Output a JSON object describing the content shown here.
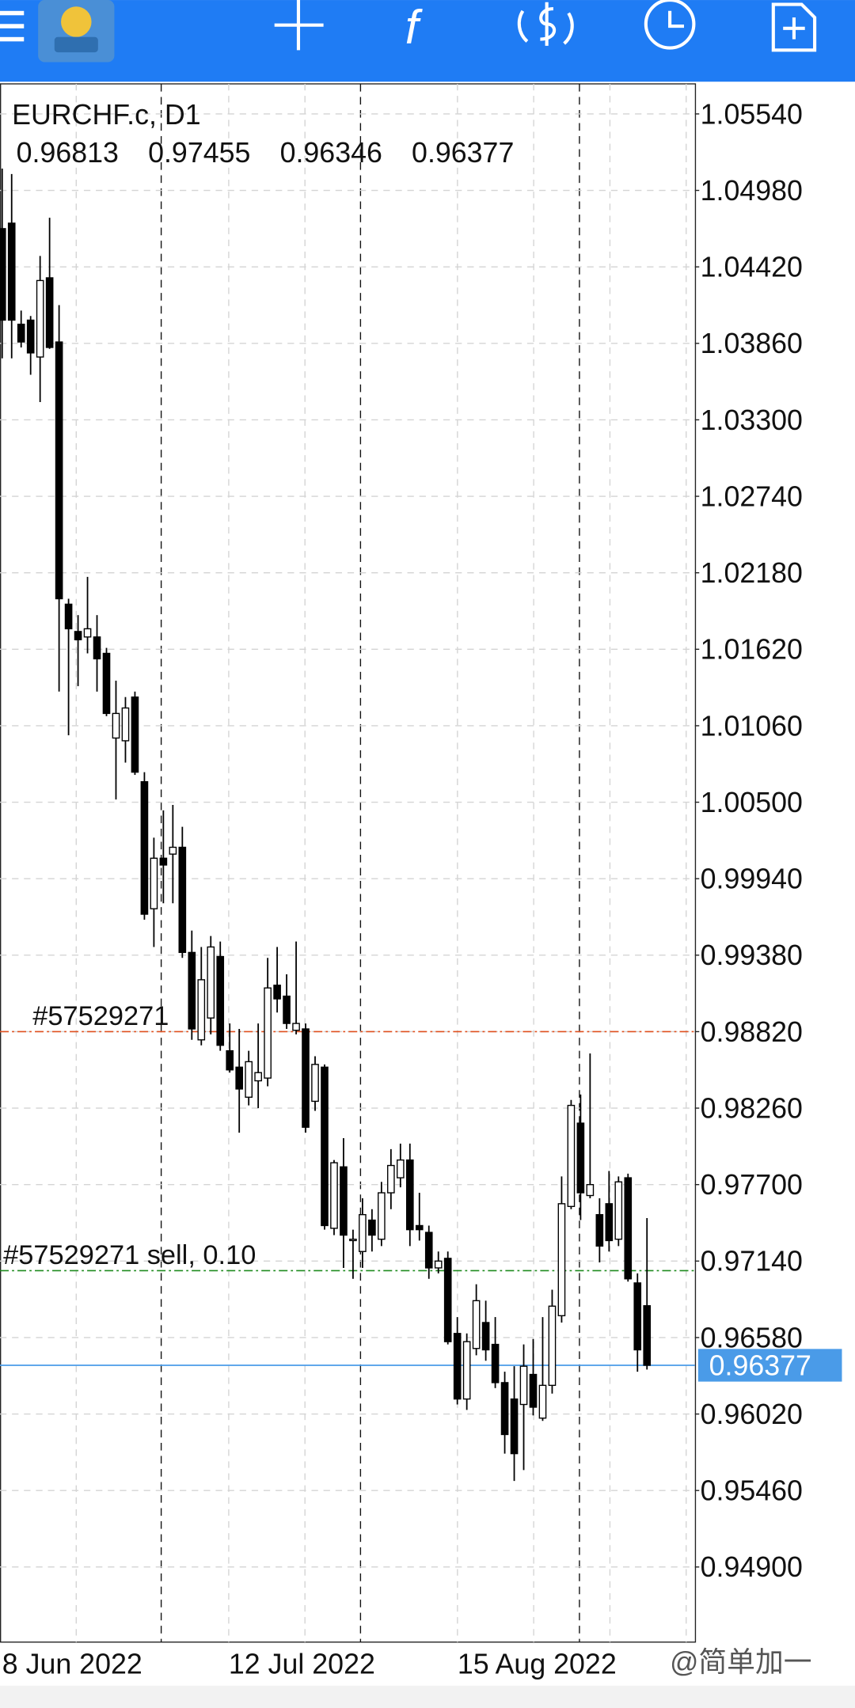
{
  "chart_data": {
    "type": "candlestick",
    "title": "EURCHF.c,  D1",
    "ohlc": [
      [
        1.047,
        1.0514,
        1.0375,
        1.0403
      ],
      [
        1.0474,
        1.051,
        1.0375,
        1.0403
      ],
      [
        1.04,
        1.041,
        1.0383,
        1.0387
      ],
      [
        1.0403,
        1.0406,
        1.0363,
        1.0379
      ],
      [
        1.0376,
        1.045,
        1.0343,
        1.0432
      ],
      [
        1.0434,
        1.0478,
        1.0382,
        1.0383
      ],
      [
        1.0387,
        1.0414,
        1.0131,
        1.0199
      ],
      [
        1.0195,
        1.0199,
        1.0099,
        1.0177
      ],
      [
        1.0175,
        1.0187,
        1.0135,
        1.0169
      ],
      [
        1.0171,
        1.0215,
        1.0159,
        1.0177
      ],
      [
        1.0171,
        1.0187,
        1.0131,
        1.0155
      ],
      [
        1.0159,
        1.0163,
        1.0113,
        1.0115
      ],
      [
        1.0097,
        1.0139,
        1.0052,
        1.0115
      ],
      [
        1.0095,
        1.0127,
        1.0079,
        1.0119
      ],
      [
        1.0127,
        1.0131,
        1.007,
        1.0072
      ],
      [
        1.0065,
        1.0072,
        0.9964,
        0.9968
      ],
      [
        0.9972,
        1.0024,
        0.9944,
        1.0009
      ],
      [
        1.0009,
        1.0044,
        0.9976,
        1.0004
      ],
      [
        1.0012,
        1.0048,
        0.9976,
        1.0017
      ],
      [
        1.0017,
        1.0032,
        0.9936,
        0.994
      ],
      [
        0.994,
        0.9956,
        0.9876,
        0.9884
      ],
      [
        0.9876,
        0.9944,
        0.9872,
        0.992
      ],
      [
        0.9892,
        0.9952,
        0.988,
        0.9944
      ],
      [
        0.9937,
        0.9948,
        0.9868,
        0.9872
      ],
      [
        0.9868,
        0.9888,
        0.9852,
        0.9854
      ],
      [
        0.9856,
        0.9884,
        0.9808,
        0.984
      ],
      [
        0.9834,
        0.9868,
        0.9828,
        0.986
      ],
      [
        0.9846,
        0.9888,
        0.9826,
        0.9852
      ],
      [
        0.9848,
        0.9936,
        0.9842,
        0.9914
      ],
      [
        0.9916,
        0.9944,
        0.9896,
        0.9906
      ],
      [
        0.9908,
        0.9924,
        0.9884,
        0.9888
      ],
      [
        0.9883,
        0.9948,
        0.988,
        0.9888
      ],
      [
        0.9884,
        0.9888,
        0.9808,
        0.9812
      ],
      [
        0.9831,
        0.9864,
        0.9824,
        0.9858
      ],
      [
        0.9856,
        0.9858,
        0.9737,
        0.974
      ],
      [
        0.9738,
        0.9788,
        0.9733,
        0.9786
      ],
      [
        0.9783,
        0.9804,
        0.9709,
        0.9733
      ],
      [
        0.9729,
        0.9737,
        0.9701,
        0.973
      ],
      [
        0.9721,
        0.976,
        0.9709,
        0.9748
      ],
      [
        0.9744,
        0.9752,
        0.9721,
        0.9733
      ],
      [
        0.973,
        0.9772,
        0.9725,
        0.9764
      ],
      [
        0.9764,
        0.9796,
        0.9752,
        0.9784
      ],
      [
        0.9775,
        0.98,
        0.9768,
        0.9788
      ],
      [
        0.9788,
        0.98,
        0.9725,
        0.9737
      ],
      [
        0.974,
        0.9764,
        0.9729,
        0.9737
      ],
      [
        0.9735,
        0.974,
        0.9701,
        0.9709
      ],
      [
        0.9709,
        0.9721,
        0.9705,
        0.9714
      ],
      [
        0.9716,
        0.9721,
        0.9653,
        0.9655
      ],
      [
        0.9661,
        0.9673,
        0.9609,
        0.9613
      ],
      [
        0.9613,
        0.9661,
        0.9605,
        0.9655
      ],
      [
        0.965,
        0.9697,
        0.9645,
        0.9685
      ],
      [
        0.9669,
        0.9685,
        0.9641,
        0.9649
      ],
      [
        0.9653,
        0.9673,
        0.9621,
        0.9625
      ],
      [
        0.9625,
        0.9633,
        0.9573,
        0.9587
      ],
      [
        0.9613,
        0.9637,
        0.9553,
        0.9573
      ],
      [
        0.9609,
        0.9653,
        0.9561,
        0.9637
      ],
      [
        0.9631,
        0.9657,
        0.9601,
        0.9607
      ],
      [
        0.9599,
        0.9673,
        0.9597,
        0.9623
      ],
      [
        0.9623,
        0.9693,
        0.9617,
        0.9681
      ],
      [
        0.9674,
        0.9776,
        0.9669,
        0.9756
      ],
      [
        0.9754,
        0.9832,
        0.9752,
        0.9828
      ],
      [
        0.9815,
        0.9836,
        0.9744,
        0.9764
      ],
      [
        0.9762,
        0.9866,
        0.976,
        0.977
      ],
      [
        0.9748,
        0.976,
        0.9713,
        0.9725
      ],
      [
        0.9756,
        0.978,
        0.9721,
        0.9729
      ],
      [
        0.973,
        0.9776,
        0.9725,
        0.9772
      ],
      [
        0.9775,
        0.9778,
        0.9699,
        0.9701
      ],
      [
        0.9698,
        0.9705,
        0.9633,
        0.9649
      ],
      [
        0.96813,
        0.97455,
        0.96346,
        0.96377
      ]
    ],
    "up_color": "#ffffff",
    "down_color": "#000000",
    "wick_color": "#000000",
    "x_labels": [
      "8 Jun 2022",
      "12 Jul 2022",
      "15 Aug 2022"
    ],
    "ylim": [
      0.9435,
      1.0576
    ],
    "yticks": [
      {
        "value": 1.0554,
        "label": "1.05540"
      },
      {
        "value": 1.0498,
        "label": "1.04980"
      },
      {
        "value": 1.0442,
        "label": "1.04420"
      },
      {
        "value": 1.0386,
        "label": "1.03860"
      },
      {
        "value": 1.033,
        "label": "1.03300"
      },
      {
        "value": 1.0274,
        "label": "1.02740"
      },
      {
        "value": 1.0218,
        "label": "1.02180"
      },
      {
        "value": 1.0162,
        "label": "1.01620"
      },
      {
        "value": 1.0106,
        "label": "1.01060"
      },
      {
        "value": 1.005,
        "label": "1.00500"
      },
      {
        "value": 0.9994,
        "label": "0.99940"
      },
      {
        "value": 0.9938,
        "label": "0.99380"
      },
      {
        "value": 0.9882,
        "label": "0.98820"
      },
      {
        "value": 0.9826,
        "label": "0.98260"
      },
      {
        "value": 0.977,
        "label": "0.97700"
      },
      {
        "value": 0.9714,
        "label": "0.97140"
      },
      {
        "value": 0.9658,
        "label": "0.96580"
      },
      {
        "value": 0.9602,
        "label": "0.96020"
      },
      {
        "value": 0.9546,
        "label": "0.95460"
      },
      {
        "value": 0.949,
        "label": "0.94900"
      }
    ],
    "grid": true,
    "levels": [
      {
        "label": "#57529271",
        "value": 0.9882,
        "color": "#e0501e"
      },
      {
        "label": "#57529271  sell,  0.10",
        "value": 0.9707,
        "color": "#1e8a1e"
      }
    ],
    "bid_color": "#4a9be8",
    "watermark": "@简单加一"
  }
}
